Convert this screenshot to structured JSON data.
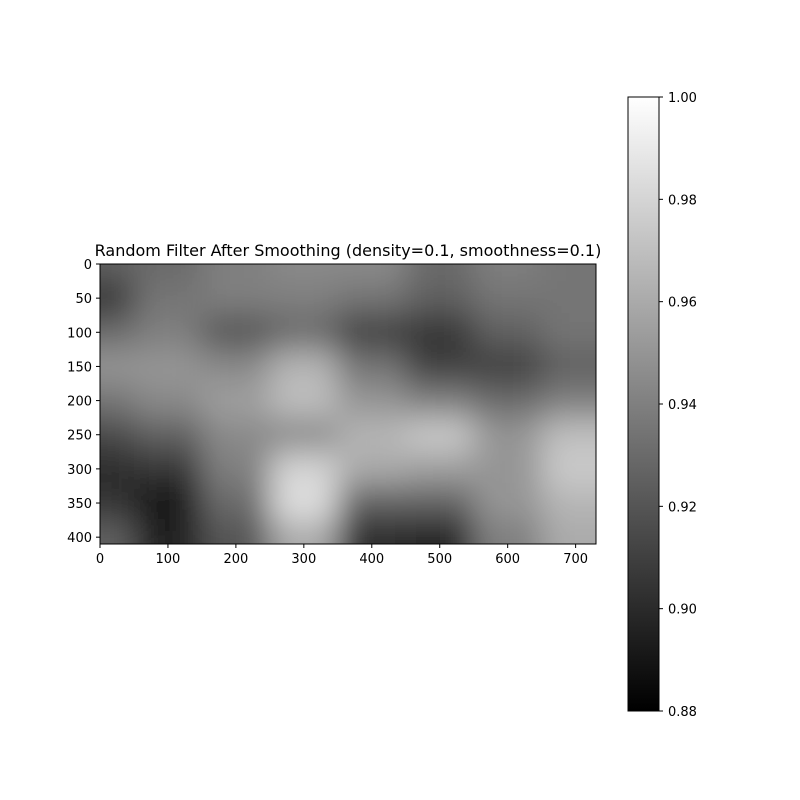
{
  "chart_data": {
    "type": "heatmap",
    "title": "Random Filter After Smoothing (density=0.1, smoothness=0.1)",
    "xlabel": "",
    "ylabel": "",
    "x_range": [
      0,
      730
    ],
    "y_range": [
      0,
      410
    ],
    "y_inverted": true,
    "x_ticks": [
      0,
      100,
      200,
      300,
      400,
      500,
      600,
      700
    ],
    "y_ticks": [
      0,
      50,
      100,
      150,
      200,
      250,
      300,
      350,
      400
    ],
    "x_tick_labels": [
      "0",
      "100",
      "200",
      "300",
      "400",
      "500",
      "600",
      "700"
    ],
    "y_tick_labels": [
      "0",
      "50",
      "100",
      "150",
      "200",
      "250",
      "300",
      "350",
      "400"
    ],
    "colormap": "gray",
    "color_range": [
      0.88,
      1.0
    ],
    "colorbar_ticks": [
      0.88,
      0.9,
      0.92,
      0.94,
      0.96,
      0.98,
      1.0
    ],
    "colorbar_tick_labels": [
      "0.88",
      "0.90",
      "0.92",
      "0.94",
      "0.96",
      "0.98",
      "1.00"
    ],
    "grid": false,
    "grid_x_centers": [
      0,
      100,
      200,
      300,
      400,
      500,
      600,
      700
    ],
    "grid_y_centers": [
      0,
      50,
      100,
      150,
      200,
      250,
      300,
      350,
      400
    ],
    "values": [
      [
        0.925,
        0.93,
        0.94,
        0.945,
        0.945,
        0.93,
        0.94,
        0.935
      ],
      [
        0.905,
        0.935,
        0.94,
        0.94,
        0.935,
        0.925,
        0.935,
        0.935
      ],
      [
        0.93,
        0.94,
        0.92,
        0.93,
        0.91,
        0.905,
        0.925,
        0.935
      ],
      [
        0.95,
        0.95,
        0.945,
        0.965,
        0.935,
        0.91,
        0.91,
        0.925
      ],
      [
        0.935,
        0.945,
        0.955,
        0.97,
        0.95,
        0.94,
        0.93,
        0.94
      ],
      [
        0.915,
        0.925,
        0.945,
        0.945,
        0.965,
        0.975,
        0.95,
        0.97
      ],
      [
        0.9,
        0.905,
        0.94,
        0.98,
        0.96,
        0.955,
        0.95,
        0.975
      ],
      [
        0.905,
        0.89,
        0.93,
        0.985,
        0.925,
        0.925,
        0.95,
        0.965
      ],
      [
        0.925,
        0.895,
        0.92,
        0.96,
        0.9,
        0.895,
        0.94,
        0.96
      ]
    ]
  }
}
